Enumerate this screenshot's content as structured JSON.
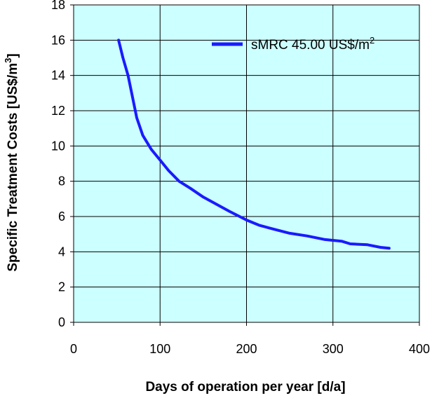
{
  "chart_data": {
    "type": "line",
    "xlabel": "Days of operation per year [d/a]",
    "ylabel_main": "Specific Treatment Costs [US$/m",
    "ylabel_sup": "3",
    "ylabel_tail": "]",
    "xlim": [
      0,
      400
    ],
    "ylim": [
      0,
      18
    ],
    "xticks": [
      0,
      100,
      200,
      300,
      400
    ],
    "yticks": [
      0,
      2,
      4,
      6,
      8,
      10,
      12,
      14,
      16,
      18
    ],
    "grid": true,
    "legend_position": "top-right",
    "colors": {
      "plot_background": "#ccffff",
      "grid": "#000000",
      "series_line": "#1a1aff"
    },
    "series": [
      {
        "name_main": "sMRC 45.00 US$/m",
        "name_sup": "2",
        "x": [
          52,
          57,
          63,
          68,
          73,
          80,
          90,
          100,
          110,
          122,
          135,
          150,
          165,
          180,
          200,
          215,
          230,
          250,
          270,
          290,
          310,
          320,
          340,
          355,
          365
        ],
        "y": [
          16.0,
          15.0,
          14.0,
          12.8,
          11.6,
          10.6,
          9.8,
          9.2,
          8.6,
          8.0,
          7.6,
          7.1,
          6.7,
          6.3,
          5.8,
          5.5,
          5.3,
          5.05,
          4.9,
          4.7,
          4.6,
          4.45,
          4.4,
          4.25,
          4.2
        ]
      }
    ]
  }
}
